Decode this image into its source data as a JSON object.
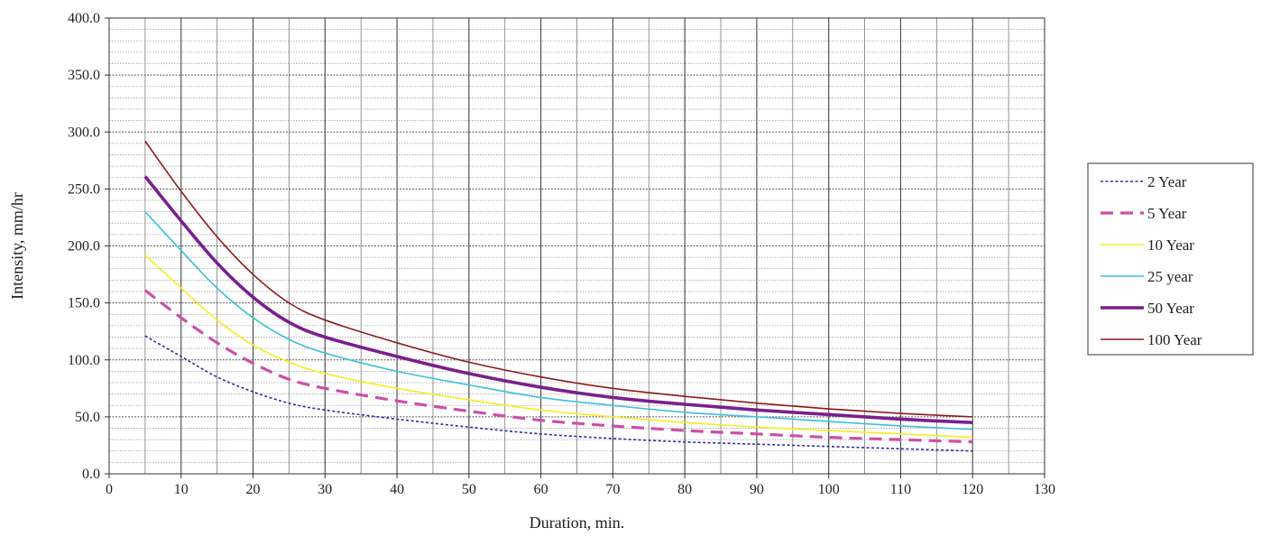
{
  "chart_data": {
    "type": "line",
    "xlabel": "Duration, min.",
    "ylabel": "Intensity, mm/hr",
    "xlim": [
      0,
      130
    ],
    "ylim": [
      0,
      400
    ],
    "x_ticks": [
      "0",
      "10",
      "20",
      "30",
      "40",
      "50",
      "60",
      "70",
      "80",
      "90",
      "100",
      "110",
      "120",
      "130"
    ],
    "y_ticks": [
      "0.0",
      "50.0",
      "100.0",
      "150.0",
      "200.0",
      "250.0",
      "300.0",
      "350.0",
      "400.0"
    ],
    "grid": true,
    "legend_position": "right",
    "x": [
      5,
      10,
      15,
      20,
      25,
      30,
      40,
      50,
      60,
      70,
      80,
      90,
      100,
      110,
      120
    ],
    "series": [
      {
        "name": "2 Year",
        "color": "#2b2f9e",
        "style": "dotted",
        "values": [
          121,
          103,
          85,
          72,
          62,
          56,
          48,
          41,
          35,
          31,
          28,
          26,
          24,
          22,
          20
        ]
      },
      {
        "name": "5 Year",
        "color": "#cc4fa6",
        "style": "dashed",
        "values": [
          161,
          137,
          115,
          97,
          83,
          75,
          64,
          55,
          47,
          42,
          38,
          35,
          32,
          30,
          28
        ]
      },
      {
        "name": "10 Year",
        "color": "#f4ee20",
        "style": "solid",
        "values": [
          192,
          163,
          135,
          113,
          98,
          88,
          75,
          65,
          56,
          50,
          45,
          41,
          38,
          35,
          32
        ]
      },
      {
        "name": "25 year",
        "color": "#3cc0d8",
        "style": "solid",
        "values": [
          230,
          196,
          163,
          137,
          118,
          106,
          90,
          78,
          67,
          60,
          54,
          50,
          46,
          42,
          39
        ]
      },
      {
        "name": "50 Year",
        "color": "#7a1f8e",
        "style": "thick",
        "values": [
          261,
          222,
          185,
          155,
          133,
          120,
          103,
          88,
          76,
          67,
          61,
          56,
          52,
          48,
          45
        ]
      },
      {
        "name": "100 Year",
        "color": "#8b1a1a",
        "style": "solid",
        "values": [
          292,
          248,
          208,
          175,
          150,
          135,
          115,
          98,
          85,
          75,
          68,
          62,
          57,
          53,
          50
        ]
      }
    ]
  }
}
